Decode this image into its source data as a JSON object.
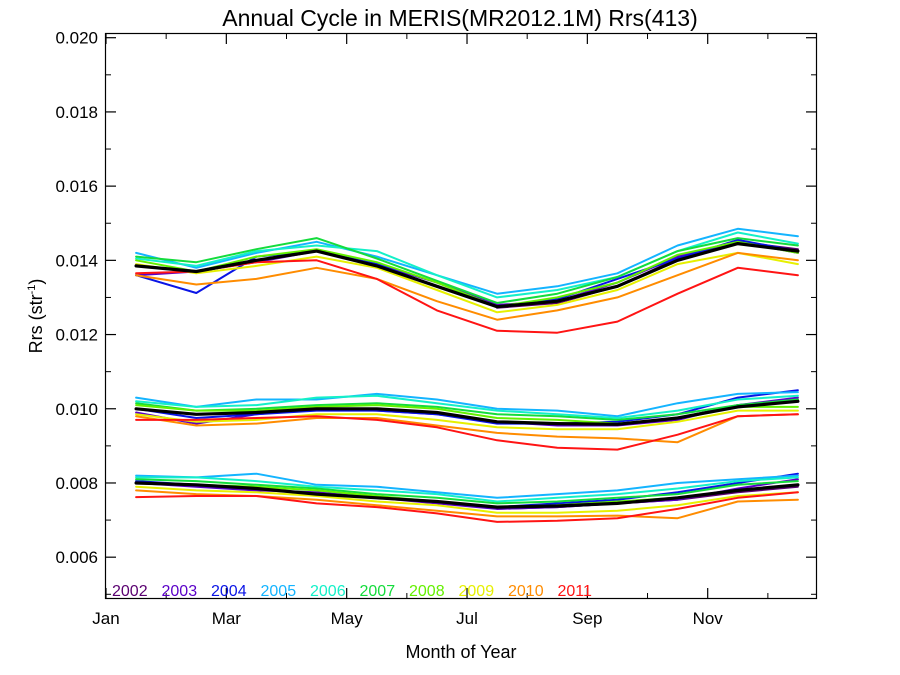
{
  "chart_data": {
    "type": "line",
    "title": "Annual Cycle in MERIS(MR2012.1M) Rrs(413)",
    "xlabel": "Month of Year",
    "ylabel_main": "Rrs (str",
    "ylabel_sup": "-1",
    "ylabel_close": ")",
    "xlim": [
      1,
      12.8
    ],
    "ylim": [
      0.0049,
      0.0201
    ],
    "x_ticks": [
      {
        "value": 1,
        "label": "Jan"
      },
      {
        "value": 3,
        "label": "Mar"
      },
      {
        "value": 5,
        "label": "May"
      },
      {
        "value": 7,
        "label": "Jul"
      },
      {
        "value": 9,
        "label": "Sep"
      },
      {
        "value": 11,
        "label": "Nov"
      }
    ],
    "x_minor_ticks": [
      2,
      4,
      6,
      8,
      10,
      12
    ],
    "y_ticks": [
      {
        "value": 0.006,
        "label": "0.006"
      },
      {
        "value": 0.008,
        "label": "0.008"
      },
      {
        "value": 0.01,
        "label": "0.010"
      },
      {
        "value": 0.012,
        "label": "0.012"
      },
      {
        "value": 0.014,
        "label": "0.014"
      },
      {
        "value": 0.016,
        "label": "0.016"
      },
      {
        "value": 0.018,
        "label": "0.018"
      },
      {
        "value": 0.02,
        "label": "0.020"
      }
    ],
    "y_minor_ticks": [
      0.005,
      0.007,
      0.009,
      0.011,
      0.013,
      0.015,
      0.017,
      0.019
    ],
    "grid": false,
    "legend_position": "bottom-left",
    "x": [
      1.5,
      2.5,
      3.5,
      4.5,
      5.5,
      6.5,
      7.5,
      8.5,
      9.5,
      10.5,
      11.5,
      12.5
    ],
    "series": [
      {
        "name": "2002",
        "color": "#5a0070",
        "groups": [
          [
            null,
            null,
            null,
            null,
            null,
            null,
            0.01272,
            0.01285,
            0.0133,
            0.01405,
            0.0145,
            0.0143
          ],
          [
            null,
            null,
            null,
            null,
            null,
            null,
            0.00965,
            0.0096,
            0.00958,
            0.00975,
            0.0101,
            0.01025
          ],
          [
            null,
            null,
            null,
            null,
            null,
            null,
            0.0073,
            0.00735,
            0.00745,
            0.00755,
            0.00775,
            0.0079
          ]
        ]
      },
      {
        "name": "2003",
        "color": "#5a00c8",
        "groups": [
          [
            0.0136,
            0.0137,
            0.01395,
            0.01425,
            0.0139,
            0.0134,
            0.0128,
            0.0129,
            0.0134,
            0.0141,
            0.0145,
            0.0142
          ],
          [
            0.0099,
            0.0096,
            0.00985,
            0.01,
            0.00995,
            0.00985,
            0.00965,
            0.00955,
            0.00955,
            0.0097,
            0.0101,
            0.0103
          ],
          [
            0.008,
            0.0079,
            0.0078,
            0.00775,
            0.0076,
            0.00745,
            0.0073,
            0.00735,
            0.00745,
            0.00755,
            0.00785,
            0.0081
          ]
        ]
      },
      {
        "name": "2004",
        "color": "#0a14e6",
        "groups": [
          [
            0.0136,
            0.01312,
            0.0141,
            0.01425,
            0.0139,
            0.0133,
            0.01275,
            0.01295,
            0.0135,
            0.01405,
            0.01455,
            0.01425
          ],
          [
            0.01,
            0.00975,
            0.00985,
            0.00995,
            0.00995,
            0.00985,
            0.0096,
            0.0096,
            0.00965,
            0.00985,
            0.0103,
            0.0105
          ],
          [
            0.00805,
            0.00795,
            0.00785,
            0.0077,
            0.0076,
            0.0075,
            0.00735,
            0.00745,
            0.00755,
            0.00775,
            0.008,
            0.00825
          ]
        ]
      },
      {
        "name": "2005",
        "color": "#14b4ff",
        "groups": [
          [
            0.0142,
            0.0138,
            0.0142,
            0.0145,
            0.0141,
            0.0136,
            0.0131,
            0.0133,
            0.01365,
            0.0144,
            0.01485,
            0.01465
          ],
          [
            0.0103,
            0.01005,
            0.01025,
            0.01025,
            0.0104,
            0.01025,
            0.01,
            0.00995,
            0.0098,
            0.01015,
            0.0104,
            0.01045
          ],
          [
            0.0082,
            0.00815,
            0.00825,
            0.00795,
            0.0079,
            0.00775,
            0.0076,
            0.0077,
            0.0078,
            0.008,
            0.0081,
            0.0082
          ]
        ]
      },
      {
        "name": "2006",
        "color": "#14f0c8",
        "groups": [
          [
            0.01405,
            0.01385,
            0.01425,
            0.0144,
            0.01425,
            0.0136,
            0.013,
            0.0132,
            0.01355,
            0.01425,
            0.01475,
            0.01445
          ],
          [
            0.0102,
            0.01005,
            0.0101,
            0.0103,
            0.01035,
            0.01015,
            0.00995,
            0.00985,
            0.00975,
            0.00995,
            0.01025,
            0.01035
          ],
          [
            0.00815,
            0.00815,
            0.00805,
            0.0079,
            0.0078,
            0.0077,
            0.0075,
            0.0076,
            0.0077,
            0.00785,
            0.00805,
            0.00815
          ]
        ]
      },
      {
        "name": "2007",
        "color": "#14dc3c",
        "groups": [
          [
            0.0141,
            0.01395,
            0.0143,
            0.0146,
            0.01405,
            0.01345,
            0.01285,
            0.0131,
            0.01355,
            0.01425,
            0.0146,
            0.0144
          ],
          [
            0.01015,
            0.00995,
            0.01,
            0.0101,
            0.01015,
            0.01005,
            0.00985,
            0.0098,
            0.0097,
            0.00985,
            0.0101,
            0.01025
          ],
          [
            0.0081,
            0.00805,
            0.00795,
            0.00785,
            0.0077,
            0.0076,
            0.00745,
            0.0075,
            0.0076,
            0.0077,
            0.00795,
            0.00805
          ]
        ]
      },
      {
        "name": "2008",
        "color": "#64f000",
        "groups": [
          [
            0.014,
            0.0137,
            0.0141,
            0.0143,
            0.01395,
            0.0134,
            0.01275,
            0.013,
            0.0134,
            0.01415,
            0.0145,
            0.0142
          ],
          [
            0.0101,
            0.00995,
            0.00995,
            0.01005,
            0.0101,
            0.01,
            0.00975,
            0.0097,
            0.0096,
            0.00975,
            0.01005,
            0.01005
          ],
          [
            0.008,
            0.00795,
            0.0079,
            0.0078,
            0.00765,
            0.0075,
            0.00735,
            0.0074,
            0.0075,
            0.0076,
            0.0078,
            0.00795
          ]
        ]
      },
      {
        "name": "2009",
        "color": "#e6f000",
        "groups": [
          [
            0.0139,
            0.01365,
            0.01385,
            0.0141,
            0.0138,
            0.0132,
            0.0126,
            0.0128,
            0.0132,
            0.0139,
            0.0142,
            0.0139
          ],
          [
            0.00985,
            0.00965,
            0.0097,
            0.00985,
            0.00985,
            0.0097,
            0.0095,
            0.00945,
            0.00945,
            0.00965,
            0.00995,
            0.00995
          ],
          [
            0.0079,
            0.0078,
            0.00775,
            0.00765,
            0.0075,
            0.0074,
            0.0072,
            0.0072,
            0.00725,
            0.0074,
            0.00765,
            0.00775
          ]
        ]
      },
      {
        "name": "2010",
        "color": "#ff8c00",
        "groups": [
          [
            0.0136,
            0.01335,
            0.0135,
            0.0138,
            0.0135,
            0.0129,
            0.0124,
            0.01265,
            0.013,
            0.0136,
            0.0142,
            0.014
          ],
          [
            0.0098,
            0.00955,
            0.0096,
            0.00975,
            0.00975,
            0.00955,
            0.00935,
            0.00925,
            0.0092,
            0.0091,
            0.0098,
            0.00985
          ],
          [
            0.0078,
            0.0077,
            0.00765,
            0.00755,
            0.0074,
            0.00725,
            0.0071,
            0.0071,
            0.00712,
            0.00705,
            0.0075,
            0.00755
          ]
        ]
      },
      {
        "name": "2011",
        "color": "#ff1414",
        "groups": [
          [
            0.01365,
            0.0137,
            0.01395,
            0.014,
            0.0135,
            0.01265,
            0.0121,
            0.01205,
            0.01235,
            0.0131,
            0.0138,
            0.0136
          ],
          [
            0.0097,
            0.0097,
            0.00975,
            0.0098,
            0.0097,
            0.0095,
            0.00915,
            0.00895,
            0.0089,
            0.0093,
            0.0098,
            0.00985
          ],
          [
            0.00762,
            0.00765,
            0.00765,
            0.00745,
            0.00735,
            0.00718,
            0.00695,
            0.00698,
            0.00705,
            0.0073,
            0.0076,
            0.00775
          ]
        ]
      },
      {
        "name": "",
        "color": "#000000",
        "bold": true,
        "groups": [
          [
            0.01385,
            0.0137,
            0.014,
            0.01425,
            0.01385,
            0.0133,
            0.01275,
            0.0129,
            0.0133,
            0.014,
            0.01445,
            0.01425
          ],
          [
            0.01,
            0.00985,
            0.0099,
            0.01,
            0.01,
            0.0099,
            0.00965,
            0.0096,
            0.00958,
            0.00975,
            0.01005,
            0.0102
          ],
          [
            0.008,
            0.00795,
            0.00785,
            0.0077,
            0.0076,
            0.0075,
            0.00735,
            0.00738,
            0.00745,
            0.0076,
            0.0078,
            0.00795
          ]
        ]
      }
    ]
  }
}
